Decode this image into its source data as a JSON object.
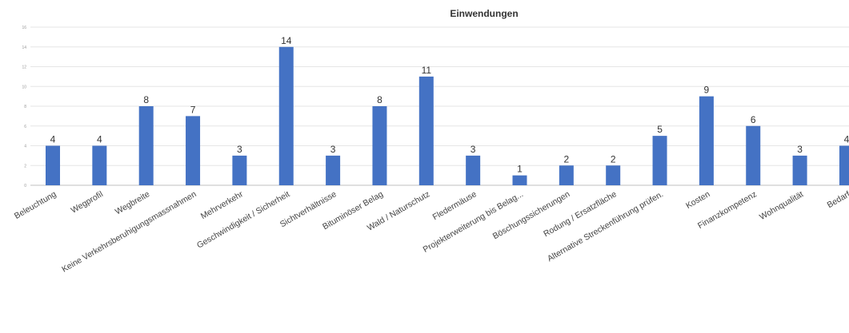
{
  "colors": {
    "bar": "#4472C4",
    "grid": "#e6e6e6",
    "axis": "#bfbfbf",
    "text": "#333333",
    "tick_text": "#999999",
    "category_text": "#444444"
  },
  "chart_data": {
    "type": "bar",
    "title": "Einwendungen",
    "xlabel": "",
    "ylabel": "",
    "ylim": [
      0,
      16
    ],
    "yticks": [
      "0",
      "2",
      "4",
      "6",
      "8",
      "10",
      "12",
      "14",
      "16"
    ],
    "grid": true,
    "legend": "none",
    "categories": [
      "Beleuchtung",
      "Wegprofil",
      "Wegbreite",
      "Keine Verkehrsberuhigungsmassnahmen",
      "Mehrverkehr",
      "Geschwindigkeit / Sicherheit",
      "Sichtverhältnisse",
      "Bituminöser Belag",
      "Wald / Naturschutz",
      "Fledermäuse",
      "Projekterweiterung bis Belag...",
      "Böschungssicherungen",
      "Rodung / Ersatzfläche",
      "Alternative Streckenführung prüfen.",
      "Kosten",
      "Finanzkompetenz",
      "Wohnqualität",
      "Bedarf"
    ],
    "values": [
      4,
      4,
      8,
      7,
      3,
      14,
      3,
      8,
      11,
      3,
      1,
      2,
      2,
      5,
      9,
      6,
      3,
      4
    ],
    "data_labels": [
      "4",
      "4",
      "8",
      "7",
      "3",
      "14",
      "3",
      "8",
      "11",
      "3",
      "1",
      "2",
      "2",
      "5",
      "9",
      "6",
      "3",
      "4"
    ]
  }
}
